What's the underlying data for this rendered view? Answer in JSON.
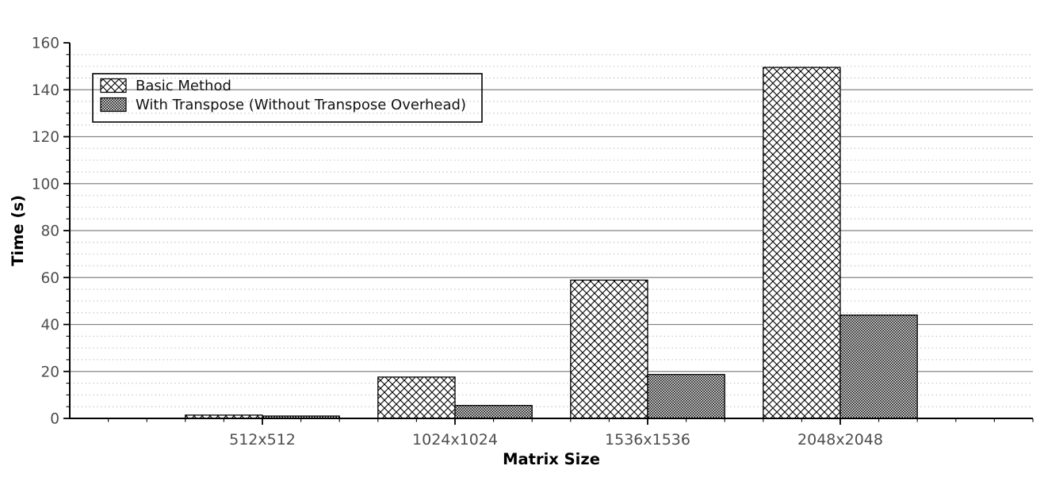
{
  "figure": {
    "background": "#ffffff"
  },
  "chart_data": {
    "type": "bar",
    "title": "",
    "categories": [
      "512x512",
      "1024x1024",
      "1536x1536",
      "2048x2048"
    ],
    "series": [
      {
        "name": "Basic Method",
        "hatch": "crosshatch",
        "values": [
          1.4,
          17.6,
          58.9,
          149.5
        ]
      },
      {
        "name": "With Transpose (Without Transpose Overhead)",
        "hatch": "checker",
        "values": [
          1.0,
          5.5,
          18.7,
          44.0
        ]
      }
    ],
    "xlabel": "Matrix Size",
    "ylabel": "Time (s)",
    "ylim": [
      0,
      160
    ],
    "yticks": [
      0,
      20,
      40,
      60,
      80,
      100,
      120,
      140,
      160
    ],
    "y_minor_step": 5,
    "x_minor_divisions_per_category": 5,
    "grid": {
      "axis": "y",
      "major_style": "solid",
      "minor_style": "dotted"
    },
    "legend": {
      "position": "upper-left",
      "bordered": true,
      "transparent_background": true
    },
    "colors": {
      "background": "#ffffff",
      "bar_fill": "#ffffff",
      "bar_edge": "#000000",
      "hatch": "#000000",
      "major_grid": "#858585",
      "minor_grid": "#c4c4c4",
      "spine": "#000000",
      "tick_label": "#4e4e4e",
      "axis_title": "#000000",
      "legend_text": "#111111",
      "legend_border": "#000000"
    }
  }
}
